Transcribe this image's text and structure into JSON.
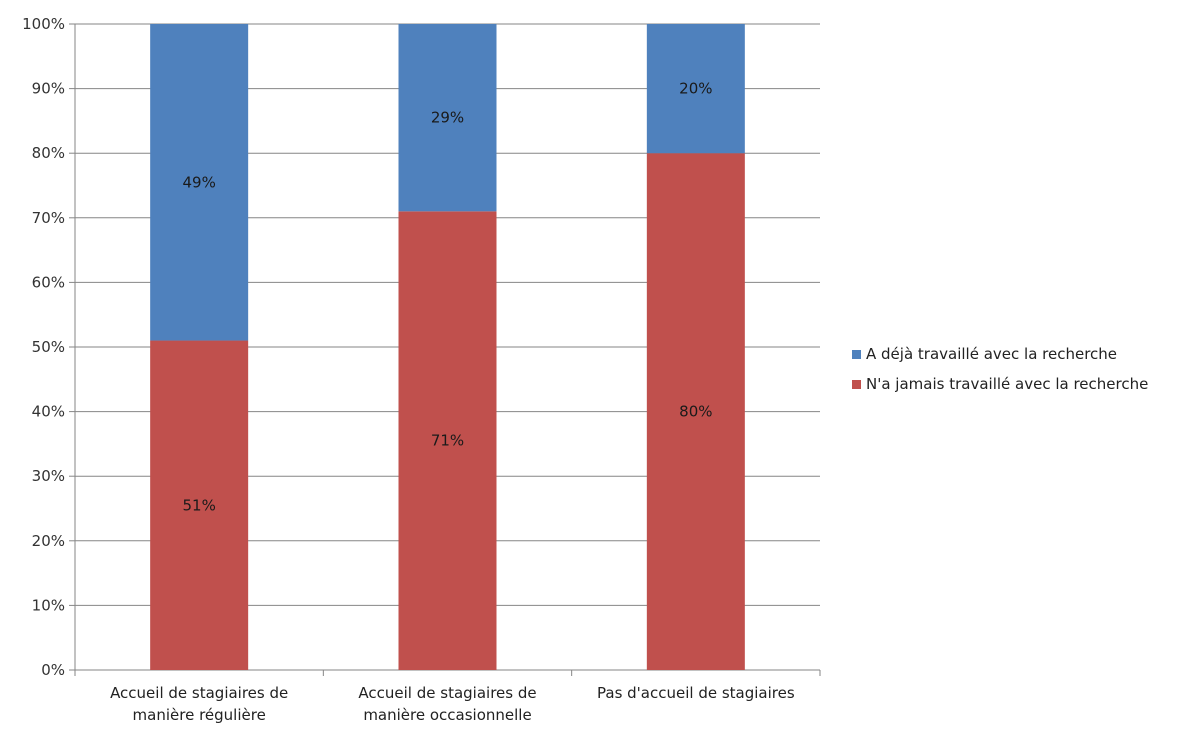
{
  "chart_data": {
    "type": "bar",
    "stacked": true,
    "percent_stacked": true,
    "categories": [
      [
        "Accueil de stagiaires de",
        "manière régulière"
      ],
      [
        "Accueil de stagiaires de",
        "manière occasionnelle"
      ],
      [
        "Pas d'accueil de stagiaires"
      ]
    ],
    "series": [
      {
        "name": "N'a jamais travaillé avec la recherche",
        "values": [
          51,
          71,
          80
        ],
        "labels": [
          "51%",
          "71%",
          "80%"
        ],
        "color": "#c0504d"
      },
      {
        "name": "A déjà travaillé avec la recherche",
        "values": [
          49,
          29,
          20
        ],
        "labels": [
          "49%",
          "29%",
          "20%"
        ],
        "color": "#4f81bd"
      }
    ],
    "y_ticks": [
      "0%",
      "10%",
      "20%",
      "30%",
      "40%",
      "50%",
      "60%",
      "70%",
      "80%",
      "90%",
      "100%"
    ],
    "ylim": [
      0,
      100
    ],
    "grid": true,
    "gridline_color": "#868686",
    "legend_position": "right",
    "legend_order": [
      1,
      0
    ],
    "title": "",
    "xlabel": "",
    "ylabel": ""
  }
}
